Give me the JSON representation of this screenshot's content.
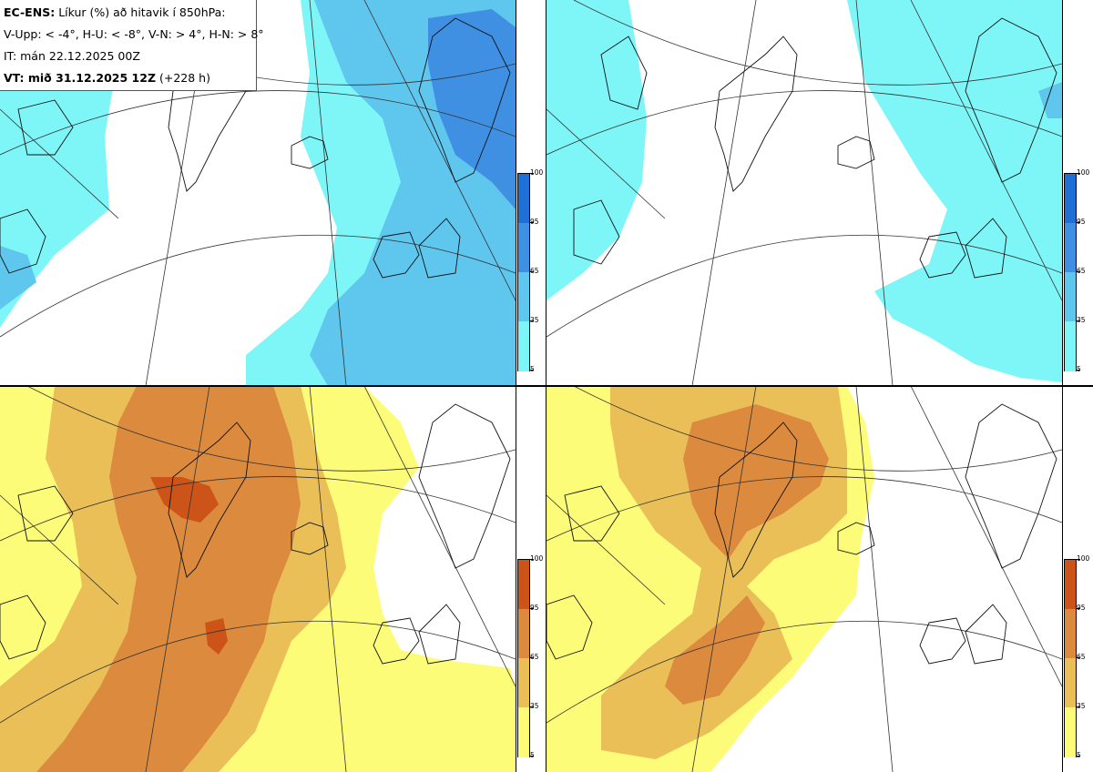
{
  "info": {
    "model": "EC-ENS:",
    "title": "Líkur (%) að hitavik í 850hPa:",
    "legend_line": "V-Upp: < -4°, H-U: < -8°, V-N: > 4°, H-N: > 8°",
    "it_line": "IT: mán 22.12.2025 00Z",
    "vt_label": "VT: mið 31.12.2025 12Z",
    "vt_lead": "(+228 h)"
  },
  "colorbars": {
    "cold": {
      "ticks": [
        "100",
        "95",
        "65",
        "35",
        "5"
      ],
      "colors": [
        "#1f6fd6",
        "#3f90e3",
        "#5fc6ee",
        "#7ef6f8"
      ]
    },
    "warm": {
      "ticks": [
        "100",
        "95",
        "65",
        "35",
        "5"
      ],
      "colors": [
        "#cc5418",
        "#dc8a3e",
        "#eabf58",
        "#fdfc78"
      ]
    }
  },
  "panels": [
    {
      "id": "V-Upp",
      "scheme": "cold"
    },
    {
      "id": "H-U",
      "scheme": "cold"
    },
    {
      "id": "V-N",
      "scheme": "warm"
    },
    {
      "id": "H-N",
      "scheme": "warm"
    }
  ]
}
